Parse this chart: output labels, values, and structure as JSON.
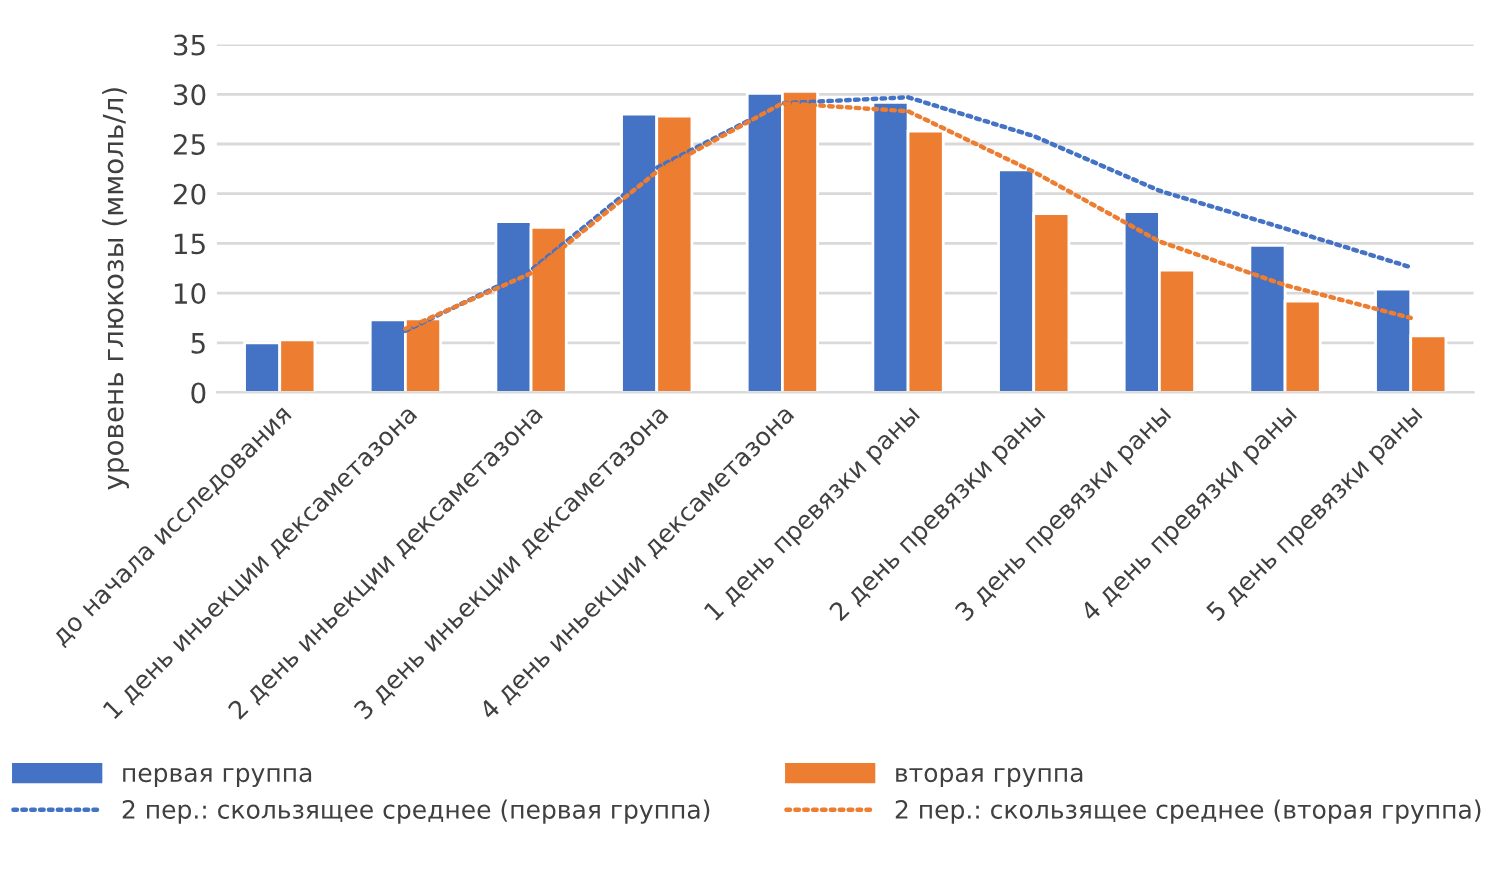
{
  "chart_data": {
    "type": "bar",
    "ylabel": "уровень глюкозы (ммоль/л)",
    "categories": [
      "до начала исследования",
      "1 день иньекции дексаметазона",
      "2 день иньекции дексаметазона",
      "3 день иньекции дексаметазона",
      "4 день иньекции дексаметазона",
      "1 день превязки раны",
      "2 день превязки раны",
      "3 день превязки раны",
      "4 день превязки раны",
      "5 день превязки раны"
    ],
    "series": [
      {
        "name": "первая группа",
        "color": "#4472c4",
        "values": [
          5.0,
          7.3,
          17.2,
          28.0,
          30.1,
          29.2,
          22.4,
          18.2,
          14.8,
          10.4
        ]
      },
      {
        "name": "вторая группа",
        "color": "#ed7d31",
        "values": [
          5.3,
          7.4,
          16.6,
          27.8,
          30.3,
          26.3,
          18.0,
          12.3,
          9.2,
          5.7
        ]
      },
      {
        "name": "2 пер.: скользящее среднее (первая группа)",
        "type": "line",
        "line_style": "dotted",
        "color": "#4472c4",
        "values": [
          null,
          6.2,
          12.3,
          22.6,
          29.1,
          29.7,
          25.8,
          20.3,
          16.5,
          12.6
        ]
      },
      {
        "name": "2 пер.: скользящее среднее (вторая группа)",
        "type": "line",
        "line_style": "dotted",
        "color": "#ed7d31",
        "values": [
          null,
          6.4,
          12.0,
          22.2,
          29.1,
          28.3,
          22.2,
          15.2,
          10.8,
          7.5
        ]
      }
    ],
    "ylim": [
      0,
      35
    ],
    "yticks": [
      0,
      5,
      10,
      15,
      20,
      25,
      30,
      35
    ],
    "grid": "y",
    "legend": "bottom"
  }
}
